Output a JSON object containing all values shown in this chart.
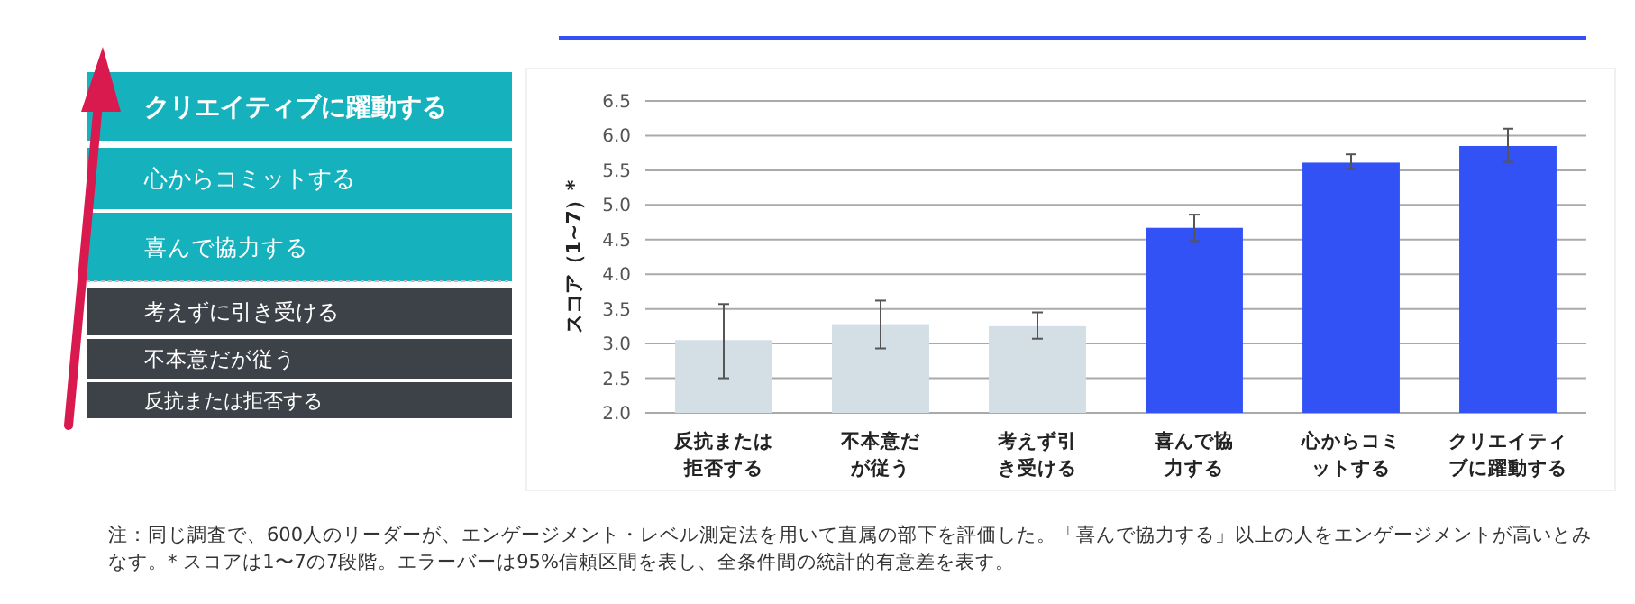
{
  "chart_data": {
    "type": "bar",
    "ylabel": "スコア（1~7）*",
    "categories": [
      "反抗または拒否する",
      "不本意だが従う",
      "考えず引き受ける",
      "喜んで協力する",
      "心からコミットする",
      "クリエイティブに躍動する"
    ],
    "values": [
      3.05,
      3.28,
      3.25,
      4.67,
      5.61,
      5.85
    ],
    "colors": [
      "#d3dfe5",
      "#d3dfe5",
      "#d3dfe5",
      "#3352f5",
      "#3352f5",
      "#3352f5"
    ],
    "errors": [
      [
        2.5,
        3.57
      ],
      [
        2.93,
        3.62
      ],
      [
        3.07,
        3.45
      ],
      [
        4.48,
        4.86
      ],
      [
        5.52,
        5.73
      ],
      [
        5.62,
        6.1
      ]
    ],
    "ylim": [
      2,
      6.5
    ],
    "yticks": [
      {
        "value": 2,
        "label": "2.0"
      },
      {
        "value": 2.5,
        "label": "2.5"
      },
      {
        "value": 3,
        "label": "3.0"
      },
      {
        "value": 3.5,
        "label": "3.5"
      },
      {
        "value": 4,
        "label": "4.0"
      },
      {
        "value": 4.5,
        "label": "4.5"
      },
      {
        "value": 5,
        "label": "5.0"
      },
      {
        "value": 5.5,
        "label": "5.5"
      },
      {
        "value": 6,
        "label": "6.0"
      },
      {
        "value": 6.5,
        "label": "6.5"
      }
    ],
    "grid": "y",
    "annotations": [
      "クリエイティブに躍動する",
      "心からコミットする",
      "喜んで協力する",
      "考えずに引き受ける",
      "不本意だが従う",
      "反抗または拒否する",
      "注：同じ調査で、600人のリーダーが、エンゲージメント・レベル測定法を用いて直属の部下を評価した。「喜んで協力する」以上の人をエンゲージメントが高いとみなす。* スコアは1〜7の7段階。エラーバーは95%信頼区間を表し、全条件間の統計的有意差を表す。"
    ]
  }
}
